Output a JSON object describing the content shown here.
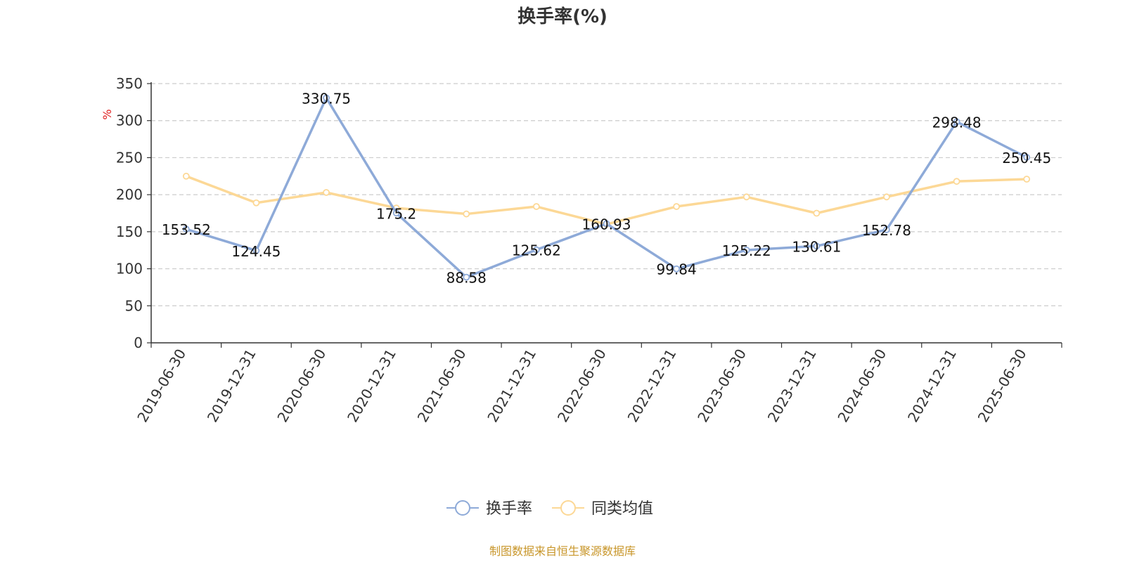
{
  "chart_data": {
    "type": "line",
    "title": "换手率(%)",
    "ylabel": "%",
    "categories": [
      "2019-06-30",
      "2019-12-31",
      "2020-06-30",
      "2020-12-31",
      "2021-06-30",
      "2021-12-31",
      "2022-06-30",
      "2022-12-31",
      "2023-06-30",
      "2023-12-31",
      "2024-06-30",
      "2024-12-31",
      "2025-06-30"
    ],
    "y_ticks": [
      0,
      50,
      100,
      150,
      200,
      250,
      300,
      350
    ],
    "ylim": [
      0,
      350
    ],
    "grid": true,
    "legend_position": "bottom-center",
    "series": [
      {
        "name": "换手率",
        "color": "#8eaad8",
        "values": [
          153.52,
          124.45,
          330.75,
          175.2,
          88.58,
          125.62,
          160.93,
          99.84,
          125.22,
          130.61,
          152.78,
          298.48,
          250.45
        ],
        "show_labels": true
      },
      {
        "name": "同类均值",
        "color": "#fcd896",
        "values": [
          225,
          189,
          203,
          182,
          174,
          184,
          160,
          184,
          197,
          175,
          197,
          218,
          221
        ],
        "show_labels": false
      }
    ],
    "source_note": "制图数据来自恒生聚源数据库"
  }
}
